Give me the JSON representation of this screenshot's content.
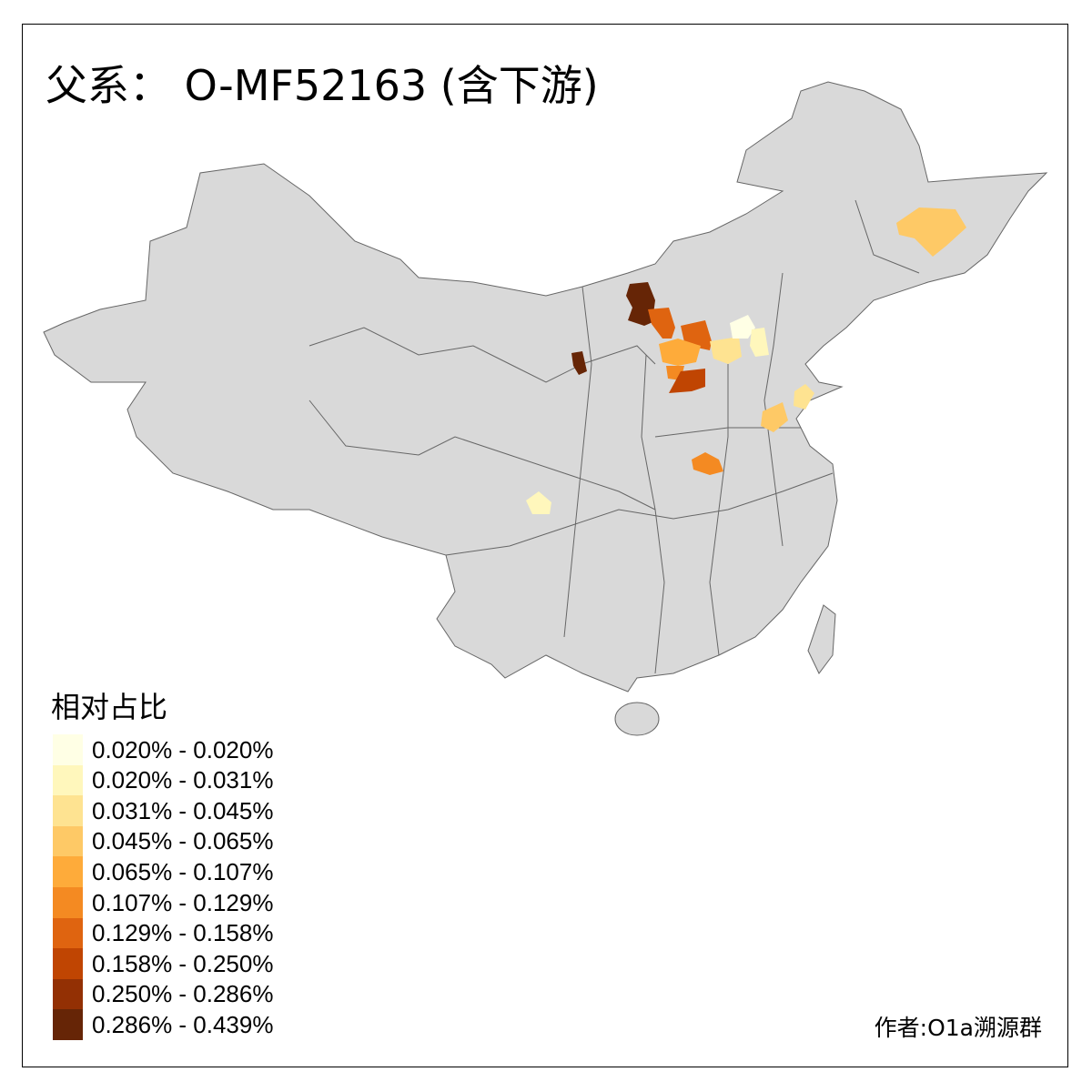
{
  "title": "父系： O-MF52163 (含下游)",
  "legend": {
    "title": "相对占比",
    "items": [
      {
        "label": "0.020% - 0.020%",
        "color": "#ffffe5"
      },
      {
        "label": "0.020% - 0.031%",
        "color": "#fff7bc"
      },
      {
        "label": "0.031% - 0.045%",
        "color": "#fee391"
      },
      {
        "label": "0.045% - 0.065%",
        "color": "#fec966"
      },
      {
        "label": "0.065% - 0.107%",
        "color": "#feab3a"
      },
      {
        "label": "0.107% - 0.129%",
        "color": "#f48a22"
      },
      {
        "label": "0.129% - 0.158%",
        "color": "#df6410"
      },
      {
        "label": "0.158% - 0.250%",
        "color": "#c04502"
      },
      {
        "label": "0.250% - 0.286%",
        "color": "#933004"
      },
      {
        "label": "0.286% - 0.439%",
        "color": "#662506"
      }
    ]
  },
  "map": {
    "base_color": "#d9d9d9",
    "border_color": "#666666"
  },
  "author": "作者:O1a溯源群"
}
